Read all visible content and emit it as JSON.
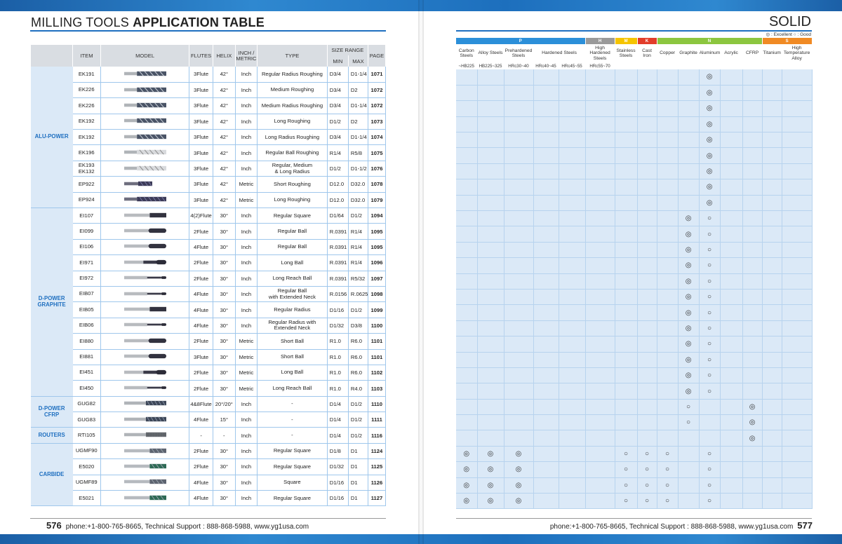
{
  "left_title": {
    "plain": "MILLING TOOLS ",
    "bold": "APPLICATION TABLE"
  },
  "right_title": "SOLID",
  "legend": "◎ : Excellent  ○ : Good",
  "table_headers": {
    "item": "ITEM",
    "model": "MODEL",
    "flutes": "FLUTES",
    "helix": "HELIX",
    "inch_metric": "INCH / METRIC",
    "type": "TYPE",
    "size_range": "SIZE RANGE",
    "min": "MIN",
    "max": "MAX",
    "page": "PAGE"
  },
  "groups": [
    {
      "name": "ALU-POWER",
      "rows": [
        {
          "item": "EK191",
          "flutes": "3Flute",
          "helix": "42°",
          "unit": "Inch",
          "type": "Regular Radius Roughing",
          "min": "D3/4",
          "max": "D1-1/4",
          "page": "1071",
          "tool": "alu-rough"
        },
        {
          "item": "EK226",
          "flutes": "3Flute",
          "helix": "42°",
          "unit": "Inch",
          "type": "Medium Roughing",
          "min": "D3/4",
          "max": "D2",
          "page": "1072",
          "tool": "alu-rough"
        },
        {
          "item": "EK226",
          "flutes": "3Flute",
          "helix": "42°",
          "unit": "Inch",
          "type": "Medium Radius Roughing",
          "min": "D3/4",
          "max": "D1-1/4",
          "page": "1072",
          "tool": "alu-rough"
        },
        {
          "item": "EK192",
          "flutes": "3Flute",
          "helix": "42°",
          "unit": "Inch",
          "type": "Long Roughing",
          "min": "D1/2",
          "max": "D2",
          "page": "1073",
          "tool": "alu-rough"
        },
        {
          "item": "EK192",
          "flutes": "3Flute",
          "helix": "42°",
          "unit": "Inch",
          "type": "Long Radius Roughing",
          "min": "D3/4",
          "max": "D1-1/4",
          "page": "1074",
          "tool": "alu-rough"
        },
        {
          "item": "EK196",
          "flutes": "3Flute",
          "helix": "42°",
          "unit": "Inch",
          "type": "Regular Ball Roughing",
          "min": "R1/4",
          "max": "R5/8",
          "page": "1075",
          "tool": "alu-ball"
        },
        {
          "item": "EK193\nEK132",
          "flutes": "3Flute",
          "helix": "42°",
          "unit": "Inch",
          "type": "Regular, Medium\n& Long Radius",
          "min": "D1/2",
          "max": "D1-1/2",
          "page": "1076",
          "tool": "alu-ball"
        },
        {
          "item": "EP922",
          "flutes": "3Flute",
          "helix": "42°",
          "unit": "Metric",
          "type": "Short Roughing",
          "min": "D12.0",
          "max": "D32.0",
          "page": "1078",
          "tool": "dark-rough"
        },
        {
          "item": "EP924",
          "flutes": "3Flute",
          "helix": "42°",
          "unit": "Metric",
          "type": "Long Roughing",
          "min": "D12.0",
          "max": "D32.0",
          "page": "1079",
          "tool": "dark-long"
        }
      ]
    },
    {
      "name": "D-POWER\nGRAPHITE",
      "rows": [
        {
          "item": "EI107",
          "flutes": "4(2)Flute",
          "helix": "30°",
          "unit": "Inch",
          "type": "Regular Square",
          "min": "D1/64",
          "max": "D1/2",
          "page": "1094",
          "tool": "dark-square"
        },
        {
          "item": "EI099",
          "flutes": "2Flute",
          "helix": "30°",
          "unit": "Inch",
          "type": "Regular Ball",
          "min": "R.0391",
          "max": "R1/4",
          "page": "1095",
          "tool": "dark-ball"
        },
        {
          "item": "EI106",
          "flutes": "4Flute",
          "helix": "30°",
          "unit": "Inch",
          "type": "Regular Ball",
          "min": "R.0391",
          "max": "R1/4",
          "page": "1095",
          "tool": "dark-ball"
        },
        {
          "item": "EI971",
          "flutes": "2Flute",
          "helix": "30°",
          "unit": "Inch",
          "type": "Long Ball",
          "min": "R.0391",
          "max": "R1/4",
          "page": "1096",
          "tool": "dark-longball"
        },
        {
          "item": "EI972",
          "flutes": "2Flute",
          "helix": "30°",
          "unit": "Inch",
          "type": "Long Reach Ball",
          "min": "R.0391",
          "max": "R5/32",
          "page": "1097",
          "tool": "dark-neck"
        },
        {
          "item": "EIB07",
          "flutes": "4Flute",
          "helix": "30°",
          "unit": "Inch",
          "type": "Regular Ball\nwith Extended Neck",
          "min": "R.0156",
          "max": "R.0625",
          "page": "1098",
          "tool": "dark-neck"
        },
        {
          "item": "EIB05",
          "flutes": "4Flute",
          "helix": "30°",
          "unit": "Inch",
          "type": "Regular Radius",
          "min": "D1/16",
          "max": "D1/2",
          "page": "1099",
          "tool": "dark-square"
        },
        {
          "item": "EIB06",
          "flutes": "4Flute",
          "helix": "30°",
          "unit": "Inch",
          "type": "Regular Radius with\nExtended Neck",
          "min": "D1/32",
          "max": "D3/8",
          "page": "1100",
          "tool": "dark-neck"
        },
        {
          "item": "EI880",
          "flutes": "2Flute",
          "helix": "30°",
          "unit": "Metric",
          "type": "Short Ball",
          "min": "R1.0",
          "max": "R6.0",
          "page": "1101",
          "tool": "dark-ball"
        },
        {
          "item": "EI881",
          "flutes": "3Flute",
          "helix": "30°",
          "unit": "Metric",
          "type": "Short Ball",
          "min": "R1.0",
          "max": "R6.0",
          "page": "1101",
          "tool": "dark-ball"
        },
        {
          "item": "EI451",
          "flutes": "2Flute",
          "helix": "30°",
          "unit": "Metric",
          "type": "Long Ball",
          "min": "R1.0",
          "max": "R6.0",
          "page": "1102",
          "tool": "dark-longball"
        },
        {
          "item": "EI450",
          "flutes": "2Flute",
          "helix": "30°",
          "unit": "Metric",
          "type": "Long Reach Ball",
          "min": "R1.0",
          "max": "R4.0",
          "page": "1103",
          "tool": "dark-neck"
        }
      ]
    },
    {
      "name": "D-POWER\nCFRP",
      "rows": [
        {
          "item": "GUG82",
          "flutes": "4&8Flute",
          "helix": "20°/20°",
          "unit": "Inch",
          "type": "-",
          "min": "D1/4",
          "max": "D1/2",
          "page": "1110",
          "tool": "cfrp"
        },
        {
          "item": "GUG83",
          "flutes": "4Flute",
          "helix": "15°",
          "unit": "Inch",
          "type": "-",
          "min": "D1/4",
          "max": "D1/2",
          "page": "1111",
          "tool": "cfrp"
        }
      ]
    },
    {
      "name": "ROUTERS",
      "rows": [
        {
          "item": "RTI105",
          "flutes": "-",
          "helix": "-",
          "unit": "Inch",
          "type": "-",
          "min": "D1/4",
          "max": "D1/2",
          "page": "1116",
          "tool": "router"
        }
      ]
    },
    {
      "name": "CARBIDE",
      "rows": [
        {
          "item": "UGMF90",
          "flutes": "2Flute",
          "helix": "30°",
          "unit": "Inch",
          "type": "Regular Square",
          "min": "D1/8",
          "max": "D1",
          "page": "1124",
          "tool": "carbide"
        },
        {
          "item": "E5020",
          "flutes": "2Flute",
          "helix": "30°",
          "unit": "Inch",
          "type": "Regular Square",
          "min": "D1/32",
          "max": "D1",
          "page": "1125",
          "tool": "carbide-g"
        },
        {
          "item": "UGMF89",
          "flutes": "4Flute",
          "helix": "30°",
          "unit": "Inch",
          "type": "Square",
          "min": "D1/16",
          "max": "D1",
          "page": "1126",
          "tool": "carbide"
        },
        {
          "item": "E5021",
          "flutes": "4Flute",
          "helix": "30°",
          "unit": "Inch",
          "type": "Regular Square",
          "min": "D1/16",
          "max": "D1",
          "page": "1127",
          "tool": "carbide-g"
        }
      ]
    }
  ],
  "material_categories": [
    {
      "label": "P",
      "span": 5,
      "color": "#2b8fd9"
    },
    {
      "label": "H",
      "span": 1,
      "color": "#9a9a9a"
    },
    {
      "label": "M",
      "span": 1,
      "color": "#f5c400"
    },
    {
      "label": "K",
      "span": 1,
      "color": "#e23d2a"
    },
    {
      "label": "N",
      "span": 5,
      "color": "#8cc63f"
    },
    {
      "label": "S",
      "span": 2,
      "color": "#f08a24"
    }
  ],
  "materials": [
    "Carbon Steels",
    "Alloy Steels",
    "Prehardened Steels",
    "Hardened Steels",
    "",
    "High Hardened Steels",
    "Stainless Steels",
    "Cast Iron",
    "Copper",
    "Graphite",
    "Aluminum",
    "Acrylic",
    "CFRP",
    "Titanium",
    "High Temperature Alloy"
  ],
  "hardness": [
    "~HB225",
    "HB225~325",
    "HRc30~40",
    "HRc40~45",
    "HRc45~55",
    "HRc55~70",
    "",
    "",
    "",
    "",
    "",
    "",
    "",
    "",
    ""
  ],
  "ratings_rows": [
    {
      "group": 0,
      "count": 9,
      "cells": {
        "10": "◎"
      }
    },
    {
      "group": 1,
      "count": 12,
      "cells": {
        "9": "◎",
        "10": "○"
      }
    },
    {
      "group": 2,
      "count": 2,
      "cells": {
        "9": "○",
        "12": "◎"
      }
    },
    {
      "group": 3,
      "count": 1,
      "cells": {
        "12": "◎"
      }
    },
    {
      "group": 4,
      "count": 4,
      "cells": {
        "0": "◎",
        "1": "◎",
        "2": "◎",
        "6": "○",
        "7": "○",
        "8": "○",
        "10": "○"
      }
    }
  ],
  "footer": {
    "left_page": "576",
    "left_text": "phone:+1-800-765-8665,  Technical Support : 888-868-5988,  www.yg1usa.com",
    "right_text": "phone:+1-800-765-8665,  Technical Support : 888-868-5988,  www.yg1usa.com",
    "right_page": "577"
  }
}
